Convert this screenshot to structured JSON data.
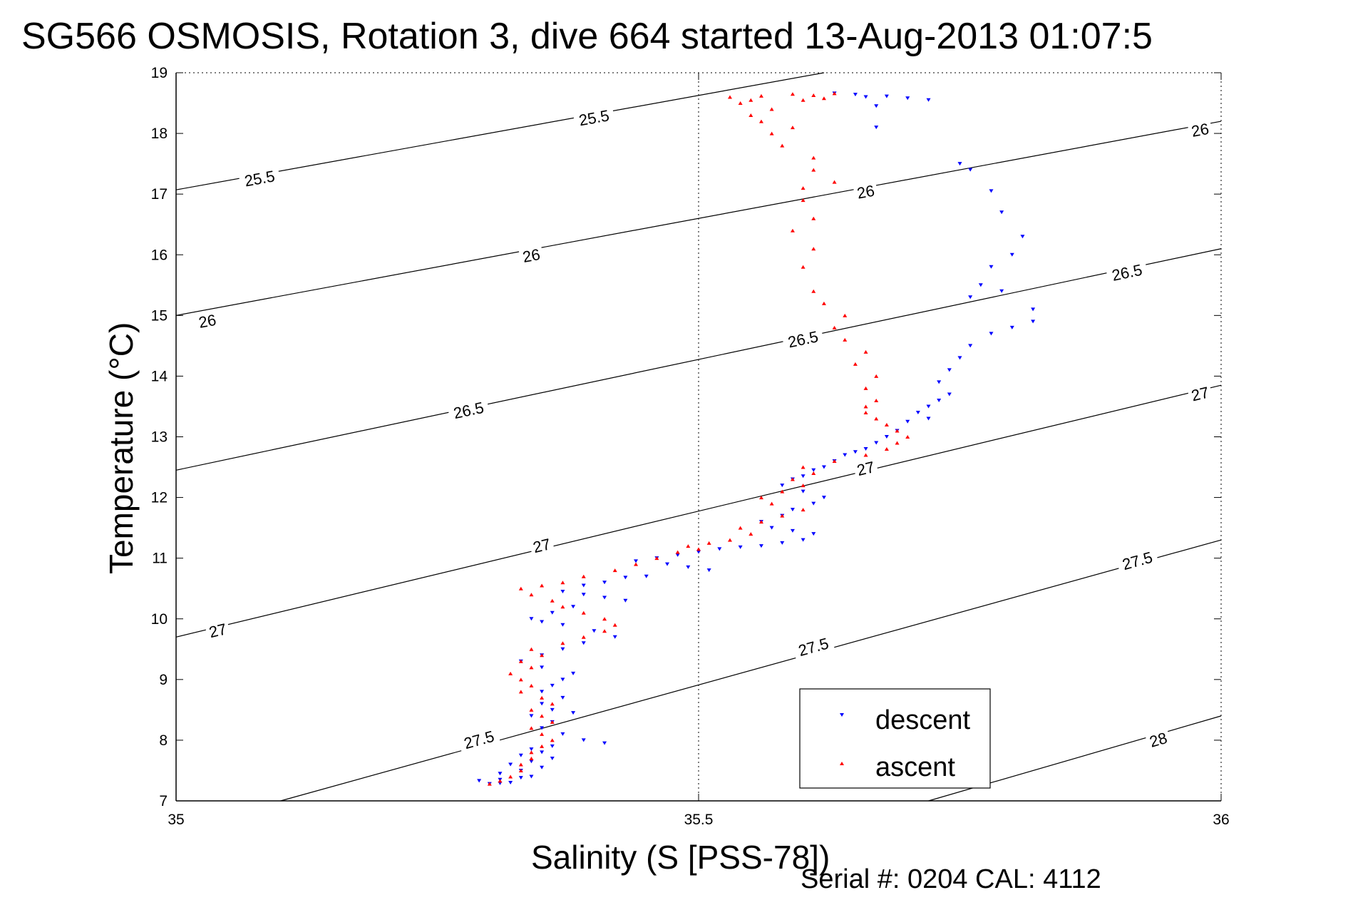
{
  "chart_data": {
    "type": "scatter",
    "title": "SG566 OSMOSIS, Rotation 3, dive 664 started 13-Aug-2013 01:07:5",
    "xlabel": "Salinity (S [PSS-78])",
    "ylabel": "Temperature (°C)",
    "xlim": [
      35,
      36
    ],
    "ylim": [
      7,
      19
    ],
    "x_ticks": [
      35,
      35.5,
      36
    ],
    "x_tick_labels": [
      "35",
      "35.5",
      "36"
    ],
    "y_ticks": [
      7,
      8,
      9,
      10,
      11,
      12,
      13,
      14,
      15,
      16,
      17,
      18,
      19
    ],
    "y_tick_labels": [
      "7",
      "8",
      "9",
      "10",
      "11",
      "12",
      "13",
      "14",
      "15",
      "16",
      "17",
      "18",
      "19"
    ],
    "grid": "dotted at x=35.5 only",
    "legend_position": "bottom-right",
    "density_contours": [
      {
        "label": "25.5",
        "points": [
          [
            35,
            17.07
          ],
          [
            35.62,
            19.0
          ]
        ]
      },
      {
        "label": "26",
        "points": [
          [
            35,
            15.0
          ],
          [
            36,
            18.2
          ]
        ]
      },
      {
        "label": "26.5",
        "points": [
          [
            35,
            12.45
          ],
          [
            36,
            16.1
          ]
        ]
      },
      {
        "label": "27",
        "points": [
          [
            35,
            9.7
          ],
          [
            36,
            13.85
          ]
        ]
      },
      {
        "label": "27.5",
        "points": [
          [
            35.1,
            7.0
          ],
          [
            36,
            11.3
          ]
        ]
      },
      {
        "label": "28",
        "points": [
          [
            35.72,
            7.0
          ],
          [
            36,
            8.4
          ]
        ]
      }
    ],
    "contour_label_positions": [
      {
        "label": "25.5",
        "x": 35.08,
        "y": 17.25
      },
      {
        "label": "25.5",
        "x": 35.4,
        "y": 18.25
      },
      {
        "label": "26",
        "x": 35.03,
        "y": 14.9
      },
      {
        "label": "26",
        "x": 35.34,
        "y": 15.98
      },
      {
        "label": "26",
        "x": 35.66,
        "y": 17.03
      },
      {
        "label": "26",
        "x": 35.98,
        "y": 18.05
      },
      {
        "label": "26.5",
        "x": 35.28,
        "y": 13.43
      },
      {
        "label": "26.5",
        "x": 35.6,
        "y": 14.6
      },
      {
        "label": "26.5",
        "x": 35.91,
        "y": 15.7
      },
      {
        "label": "27",
        "x": 35.04,
        "y": 9.8
      },
      {
        "label": "27",
        "x": 35.35,
        "y": 11.2
      },
      {
        "label": "27",
        "x": 35.66,
        "y": 12.47
      },
      {
        "label": "27",
        "x": 35.98,
        "y": 13.7
      },
      {
        "label": "27.5",
        "x": 35.29,
        "y": 8.0
      },
      {
        "label": "27.5",
        "x": 35.61,
        "y": 9.53
      },
      {
        "label": "27.5",
        "x": 35.92,
        "y": 10.95
      },
      {
        "label": "28",
        "x": 35.94,
        "y": 8.0
      }
    ],
    "series": [
      {
        "name": "descent",
        "color": "#0000ff",
        "marker": "triangle-down",
        "x": [
          35.63,
          35.65,
          35.66,
          35.67,
          35.68,
          35.7,
          35.72,
          35.67,
          35.75,
          35.76,
          35.78,
          35.79,
          35.81,
          35.8,
          35.78,
          35.77,
          35.76,
          35.79,
          35.82,
          35.82,
          35.8,
          35.78,
          35.76,
          35.75,
          35.74,
          35.73,
          35.74,
          35.73,
          35.72,
          35.71,
          35.72,
          35.7,
          35.69,
          35.68,
          35.67,
          35.66,
          35.65,
          35.64,
          35.63,
          35.62,
          35.61,
          35.6,
          35.59,
          35.58,
          35.6,
          35.62,
          35.61,
          35.59,
          35.58,
          35.56,
          35.57,
          35.59,
          35.61,
          35.6,
          35.58,
          35.56,
          35.54,
          35.52,
          35.5,
          35.48,
          35.46,
          35.44,
          35.47,
          35.49,
          35.51,
          35.45,
          35.43,
          35.41,
          35.39,
          35.37,
          35.39,
          35.41,
          35.43,
          35.38,
          35.36,
          35.34,
          35.35,
          35.37,
          35.4,
          35.42,
          35.39,
          35.37,
          35.35,
          35.33,
          35.35,
          35.38,
          35.37,
          35.36,
          35.35,
          35.37,
          35.35,
          35.36,
          35.38,
          35.34,
          35.36,
          35.35,
          35.37,
          35.39,
          35.41,
          35.36,
          35.34,
          35.35,
          35.33,
          35.36,
          35.34,
          35.32,
          35.35,
          35.33,
          35.31,
          35.34,
          35.33,
          35.31,
          35.29,
          35.32,
          35.31,
          35.3
        ],
        "y": [
          18.66,
          18.64,
          18.6,
          18.1,
          18.61,
          18.58,
          18.55,
          18.45,
          17.5,
          17.4,
          17.05,
          16.7,
          16.3,
          16.0,
          15.8,
          15.5,
          15.3,
          15.4,
          15.1,
          14.9,
          14.8,
          14.7,
          14.5,
          14.3,
          14.1,
          13.9,
          13.7,
          13.6,
          13.5,
          13.4,
          13.3,
          13.25,
          13.1,
          13.0,
          12.9,
          12.8,
          12.75,
          12.7,
          12.6,
          12.5,
          12.45,
          12.35,
          12.3,
          12.2,
          12.1,
          12.0,
          11.9,
          11.8,
          11.7,
          11.6,
          11.5,
          11.45,
          11.4,
          11.3,
          11.25,
          11.2,
          11.18,
          11.15,
          11.1,
          11.05,
          11.0,
          10.95,
          10.9,
          10.85,
          10.8,
          10.7,
          10.68,
          10.6,
          10.55,
          10.45,
          10.4,
          10.35,
          10.3,
          10.2,
          10.1,
          10.0,
          9.95,
          9.9,
          9.8,
          9.7,
          9.6,
          9.5,
          9.4,
          9.3,
          9.2,
          9.1,
          9.0,
          8.9,
          8.8,
          8.7,
          8.6,
          8.5,
          8.45,
          8.4,
          8.3,
          8.2,
          8.1,
          8.0,
          7.95,
          7.9,
          7.85,
          7.8,
          7.75,
          7.7,
          7.65,
          7.6,
          7.55,
          7.5,
          7.45,
          7.4,
          7.38,
          7.35,
          7.33,
          7.3,
          7.29,
          7.28
        ]
      },
      {
        "name": "ascent",
        "color": "#ff0000",
        "marker": "triangle-up",
        "x": [
          35.3,
          35.31,
          35.32,
          35.33,
          35.33,
          35.34,
          35.34,
          35.35,
          35.36,
          35.35,
          35.34,
          35.36,
          35.35,
          35.34,
          35.36,
          35.35,
          35.33,
          35.34,
          35.33,
          35.32,
          35.34,
          35.33,
          35.35,
          35.34,
          35.37,
          35.39,
          35.41,
          35.42,
          35.41,
          35.39,
          35.37,
          35.36,
          35.34,
          35.33,
          35.35,
          35.37,
          35.39,
          35.42,
          35.44,
          35.46,
          35.48,
          35.5,
          35.49,
          35.51,
          35.53,
          35.55,
          35.54,
          35.56,
          35.58,
          35.6,
          35.57,
          35.56,
          35.58,
          35.6,
          35.59,
          35.61,
          35.6,
          35.63,
          35.66,
          35.68,
          35.69,
          35.7,
          35.69,
          35.68,
          35.67,
          35.66,
          35.66,
          35.67,
          35.66,
          35.67,
          35.65,
          35.66,
          35.64,
          35.63,
          35.64,
          35.62,
          35.61,
          35.6,
          35.61,
          35.59,
          35.61,
          35.6,
          35.6,
          35.63,
          35.61,
          35.61,
          35.58,
          35.57,
          35.59,
          35.56,
          35.55,
          35.57,
          35.54,
          35.55,
          35.53,
          35.56,
          35.59,
          35.63,
          35.61,
          35.62,
          35.6
        ],
        "y": [
          7.28,
          7.33,
          7.4,
          7.5,
          7.6,
          7.7,
          7.8,
          7.9,
          8.0,
          8.1,
          8.2,
          8.3,
          8.4,
          8.5,
          8.6,
          8.7,
          8.8,
          8.9,
          9.0,
          9.1,
          9.2,
          9.3,
          9.4,
          9.5,
          9.6,
          9.7,
          9.8,
          9.9,
          10.0,
          10.1,
          10.2,
          10.3,
          10.4,
          10.5,
          10.55,
          10.6,
          10.7,
          10.8,
          10.9,
          11.0,
          11.1,
          11.15,
          11.2,
          11.25,
          11.3,
          11.4,
          11.5,
          11.6,
          11.7,
          11.8,
          11.9,
          12.0,
          12.1,
          12.2,
          12.3,
          12.4,
          12.5,
          12.6,
          12.7,
          12.8,
          12.9,
          13.0,
          13.1,
          13.2,
          13.3,
          13.4,
          13.5,
          13.6,
          13.8,
          14.0,
          14.2,
          14.4,
          14.6,
          14.8,
          15.0,
          15.2,
          15.4,
          15.8,
          16.1,
          16.4,
          16.6,
          16.9,
          17.1,
          17.2,
          17.4,
          17.6,
          17.8,
          18.0,
          18.1,
          18.2,
          18.3,
          18.4,
          18.5,
          18.55,
          18.6,
          18.62,
          18.65,
          18.66,
          18.63,
          18.58,
          18.55
        ]
      }
    ]
  },
  "footer": {
    "serial": "Serial #: 0204  CAL: 4112"
  }
}
